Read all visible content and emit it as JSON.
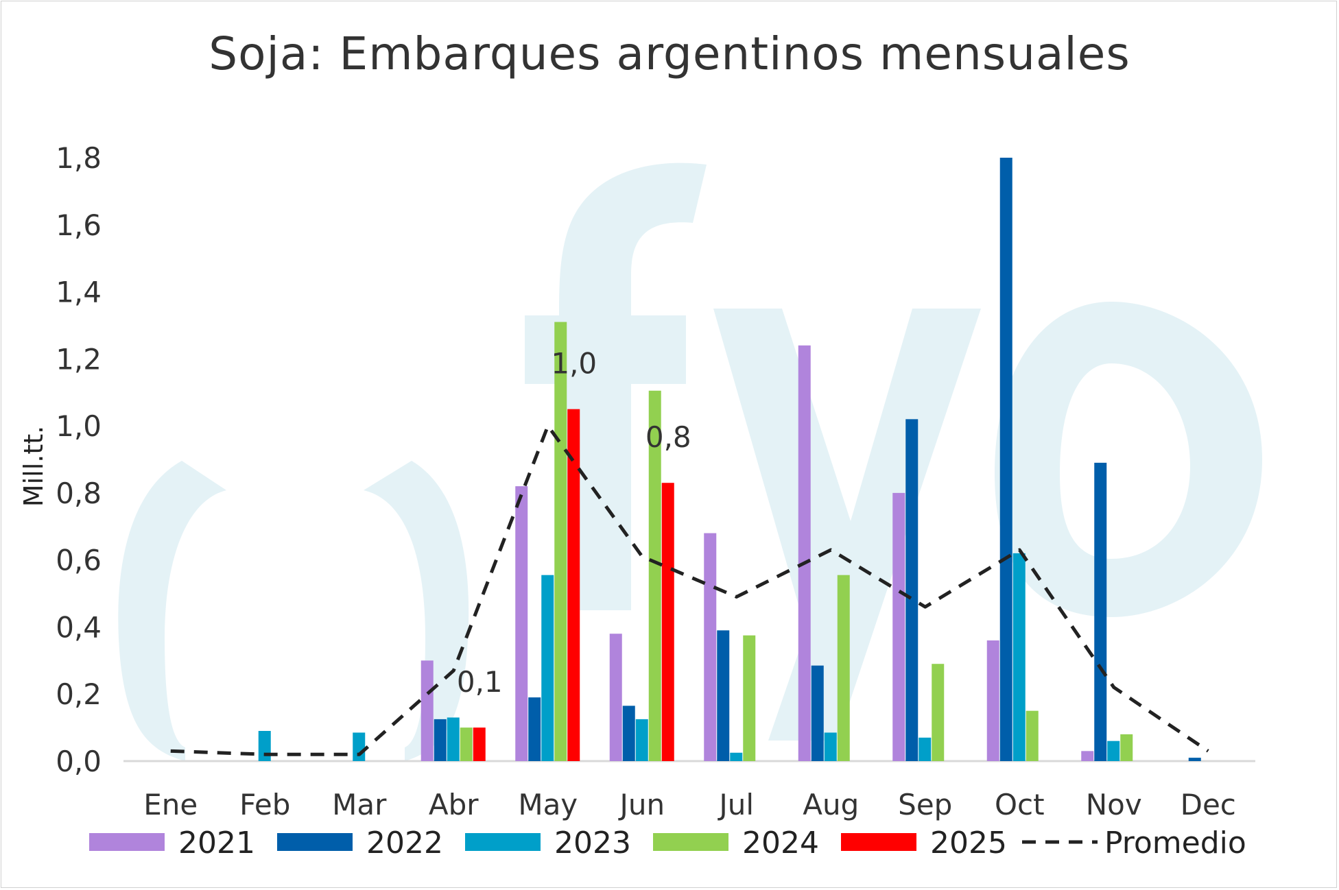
{
  "chart_data": {
    "type": "bar",
    "title": "Soja: Embarques argentinos mensuales",
    "ylabel": "Mill.tt.",
    "xlabel": "",
    "ylim": [
      0,
      1.8
    ],
    "yticks": [
      "0,0",
      "0,2",
      "0,4",
      "0,6",
      "0,8",
      "1,0",
      "1,2",
      "1,4",
      "1,6",
      "1,8"
    ],
    "categories": [
      "Ene",
      "Feb",
      "Mar",
      "Abr",
      "May",
      "Jun",
      "Jul",
      "Aug",
      "Sep",
      "Oct",
      "Nov",
      "Dec"
    ],
    "series": [
      {
        "name": "2021",
        "color": "#b084dc",
        "values": [
          0,
          0,
          0,
          0.3,
          0.82,
          0.38,
          0.68,
          1.24,
          0.8,
          0.36,
          0.03,
          0
        ]
      },
      {
        "name": "2022",
        "color": "#005eaa",
        "values": [
          0,
          0,
          0,
          0.125,
          0.19,
          0.165,
          0.39,
          0.285,
          1.02,
          1.8,
          0.89,
          0.01
        ]
      },
      {
        "name": "2023",
        "color": "#009fc9",
        "values": [
          0,
          0.09,
          0.085,
          0.13,
          0.555,
          0.125,
          0.025,
          0.085,
          0.07,
          0.62,
          0.06,
          0
        ]
      },
      {
        "name": "2024",
        "color": "#92d050",
        "values": [
          0,
          0,
          0,
          0.1,
          1.31,
          1.105,
          0.375,
          0.555,
          0.29,
          0.15,
          0.08,
          0
        ]
      },
      {
        "name": "2025",
        "color": "#ff0000",
        "values": [
          0,
          0,
          0,
          0.1,
          1.05,
          0.83,
          0,
          0,
          0,
          0,
          0,
          0
        ]
      }
    ],
    "average": {
      "name": "Promedio",
      "color": "#222222",
      "style": "dashed",
      "values": [
        0.03,
        0.02,
        0.02,
        0.27,
        1.0,
        0.61,
        0.49,
        0.63,
        0.46,
        0.63,
        0.22,
        0.03
      ]
    },
    "data_labels": [
      {
        "category": "Abr",
        "text": "0,1"
      },
      {
        "category": "May",
        "text": "1,0"
      },
      {
        "category": "Jun",
        "text": "0,8"
      }
    ],
    "legend_position": "bottom",
    "grid": false
  }
}
